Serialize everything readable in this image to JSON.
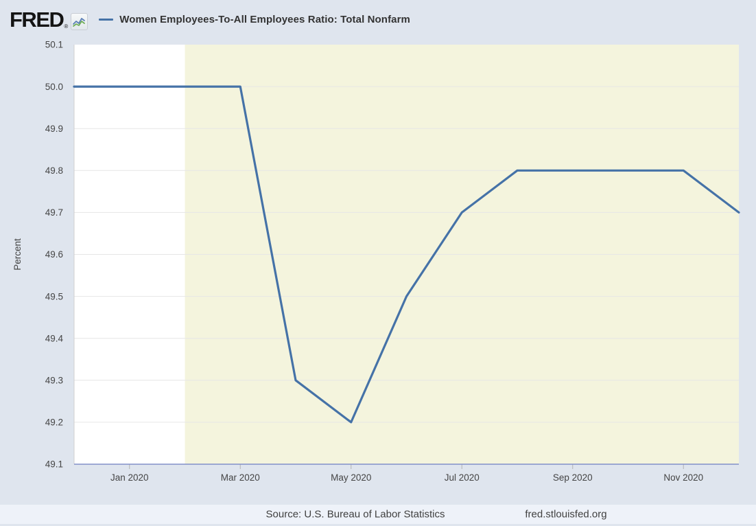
{
  "header": {
    "logo_text": "FRED",
    "logo_reg": "®",
    "series_title": "Women Employees-To-All Employees Ratio: Total Nonfarm"
  },
  "footer": {
    "source": "Source: U.S. Bureau of Labor Statistics",
    "site_link": "fred.stlouisfed.org"
  },
  "chart_data": {
    "type": "line",
    "title": "Women Employees-To-All Employees Ratio: Total Nonfarm",
    "xlabel": "",
    "ylabel": "Percent",
    "ylim": [
      49.1,
      50.1
    ],
    "y_ticks": [
      49.1,
      49.2,
      49.3,
      49.4,
      49.5,
      49.6,
      49.7,
      49.8,
      49.9,
      50.0,
      50.1
    ],
    "x_range_months": [
      "2019-12",
      "2020-12"
    ],
    "x_ticks": [
      {
        "label": "Jan 2020",
        "month": "2020-01"
      },
      {
        "label": "Mar 2020",
        "month": "2020-03"
      },
      {
        "label": "May 2020",
        "month": "2020-05"
      },
      {
        "label": "Jul 2020",
        "month": "2020-07"
      },
      {
        "label": "Sep 2020",
        "month": "2020-09"
      },
      {
        "label": "Nov 2020",
        "month": "2020-11"
      }
    ],
    "series": [
      {
        "name": "Women Employees-To-All Employees Ratio: Total Nonfarm",
        "x": [
          "2019-12",
          "2020-01",
          "2020-02",
          "2020-03",
          "2020-04",
          "2020-05",
          "2020-06",
          "2020-07",
          "2020-08",
          "2020-09",
          "2020-10",
          "2020-11",
          "2020-12"
        ],
        "values": [
          50.0,
          50.0,
          50.0,
          50.0,
          49.3,
          49.2,
          49.5,
          49.7,
          49.8,
          49.8,
          49.8,
          49.8,
          49.7
        ]
      }
    ],
    "recession_shading": {
      "start_month": "2020-02",
      "end_month": "2020-12"
    },
    "grid": true,
    "legend_position": "top-header",
    "colors": {
      "line": "#4572a7",
      "recession_band": "#f4f4dd",
      "plot_background": "#ffffff",
      "page_background": "#dfe5ee",
      "grid_line": "#e6e6e6",
      "x_axis_line": "#8290c9",
      "tick_mark": "#b3b3b3",
      "axis_text": "#444444",
      "plot_border": "#d0d0d0"
    }
  }
}
